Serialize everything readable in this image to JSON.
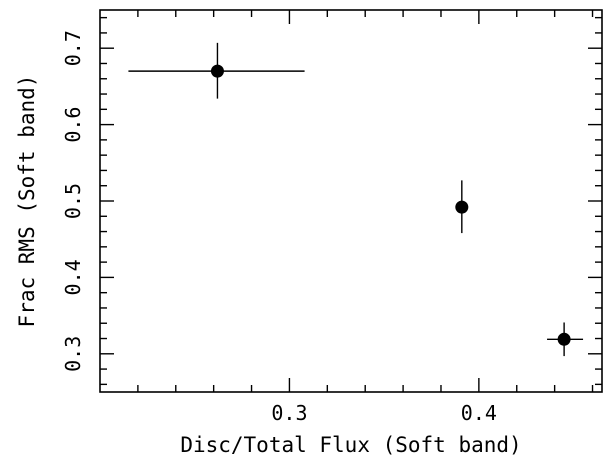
{
  "chart_data": {
    "type": "scatter",
    "xlabel": "Disc/Total Flux (Soft band)",
    "ylabel": "Frac RMS (Soft band)",
    "xlim": [
      0.2,
      0.465
    ],
    "ylim": [
      0.25,
      0.75
    ],
    "x_ticks": {
      "major": [
        0.3,
        0.4
      ],
      "minor_step": 0.02,
      "labels": [
        "0.3",
        "0.4"
      ]
    },
    "y_ticks": {
      "major": [
        0.3,
        0.4,
        0.5,
        0.6,
        0.7
      ],
      "minor_step": 0.02,
      "labels": [
        "0.3",
        "0.4",
        "0.5",
        "0.6",
        "0.7"
      ]
    },
    "grid": false,
    "legend": "none",
    "colors": {
      "marker": "#000000",
      "axes": "#000000"
    },
    "points": [
      {
        "x": 0.262,
        "y": 0.67,
        "x_lo": 0.215,
        "x_hi": 0.308,
        "y_lo": 0.634,
        "y_hi": 0.707
      },
      {
        "x": 0.391,
        "y": 0.492,
        "x_lo": 0.391,
        "x_hi": 0.391,
        "y_lo": 0.458,
        "y_hi": 0.527
      },
      {
        "x": 0.445,
        "y": 0.319,
        "x_lo": 0.436,
        "x_hi": 0.455,
        "y_lo": 0.297,
        "y_hi": 0.341
      }
    ]
  }
}
